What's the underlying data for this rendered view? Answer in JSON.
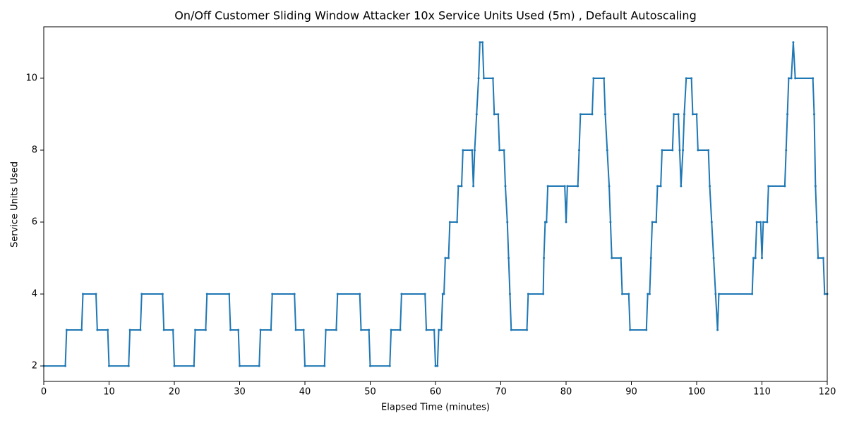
{
  "chart_data": {
    "type": "line",
    "title": "On/Off Customer Sliding Window Attacker 10x Service Units Used (5m) , Default Autoscaling",
    "xlabel": "Elapsed Time (minutes)",
    "ylabel": "Service Units Used",
    "color": "#1f77b4",
    "xlim": [
      0,
      120
    ],
    "ylim": [
      1.57,
      11.43
    ],
    "xticks": [
      0,
      10,
      20,
      30,
      40,
      50,
      60,
      70,
      80,
      90,
      100,
      110,
      120
    ],
    "yticks": [
      2,
      4,
      6,
      8,
      10
    ],
    "x": [
      0,
      3.3,
      3.5,
      5.8,
      6,
      8,
      8.2,
      9.8,
      10,
      13,
      13.2,
      14.8,
      15,
      18.2,
      18.4,
      19.8,
      20,
      23,
      23.2,
      24.8,
      25,
      28.4,
      28.6,
      29.8,
      30,
      33,
      33.2,
      34.8,
      35,
      38.4,
      38.6,
      39.8,
      40,
      43,
      43.2,
      44.8,
      45,
      48.4,
      48.6,
      49.8,
      50,
      53,
      53.2,
      54.6,
      54.8,
      58.4,
      58.6,
      59.8,
      60,
      60.3,
      60.5,
      60.9,
      61.1,
      61.3,
      61.5,
      62,
      62.2,
      63.3,
      63.5,
      64,
      64.2,
      65.6,
      65.8,
      66,
      66.3,
      66.6,
      66.8,
      67.2,
      67.4,
      68.8,
      69,
      69.6,
      69.8,
      70.5,
      70.7,
      71,
      71.2,
      71.4,
      71.6,
      74,
      74.2,
      76.5,
      76.6,
      76.8,
      77,
      77.2,
      79.8,
      80,
      80.2,
      81.8,
      82,
      82.2,
      84,
      84.2,
      85.8,
      86,
      86.3,
      86.6,
      86.8,
      87,
      88.4,
      88.6,
      89.6,
      89.8,
      92.3,
      92.5,
      92.8,
      93,
      93.2,
      93.8,
      94,
      94.5,
      94.7,
      96.3,
      96.5,
      97.2,
      97.4,
      97.6,
      97.9,
      98.1,
      98.4,
      99.2,
      99.4,
      100,
      100.2,
      101.8,
      102,
      102.3,
      102.6,
      102.9,
      103.2,
      103.4,
      108.5,
      108.7,
      109,
      109.2,
      109.8,
      110,
      110.2,
      110.8,
      111,
      113.5,
      113.7,
      113.9,
      114.1,
      114.5,
      114.8,
      115.1,
      117.8,
      118,
      118.2,
      118.4,
      118.6,
      119.4,
      119.6,
      120
    ],
    "values": [
      2,
      2,
      3,
      3,
      4,
      4,
      3,
      3,
      2,
      2,
      3,
      3,
      4,
      4,
      3,
      3,
      2,
      2,
      3,
      3,
      4,
      4,
      3,
      3,
      2,
      2,
      3,
      3,
      4,
      4,
      3,
      3,
      2,
      2,
      3,
      3,
      4,
      4,
      3,
      3,
      2,
      2,
      3,
      3,
      4,
      4,
      3,
      3,
      2,
      2,
      3,
      3,
      4,
      4,
      5,
      5,
      6,
      6,
      7,
      7,
      8,
      8,
      7,
      8,
      9,
      10,
      11,
      11,
      10,
      10,
      9,
      9,
      8,
      8,
      7,
      6,
      5,
      4,
      3,
      3,
      4,
      4,
      5,
      6,
      6,
      7,
      7,
      6,
      7,
      7,
      8,
      9,
      9,
      10,
      10,
      9,
      8,
      7,
      6,
      5,
      5,
      4,
      4,
      3,
      3,
      4,
      4,
      5,
      6,
      6,
      7,
      7,
      8,
      8,
      9,
      9,
      8,
      7,
      8,
      9,
      10,
      10,
      9,
      9,
      8,
      8,
      7,
      6,
      5,
      4,
      3,
      4,
      4,
      5,
      5,
      6,
      6,
      5,
      6,
      6,
      7,
      7,
      8,
      9,
      10,
      10,
      11,
      10,
      10,
      9,
      7,
      6,
      5,
      5,
      4,
      4
    ]
  }
}
